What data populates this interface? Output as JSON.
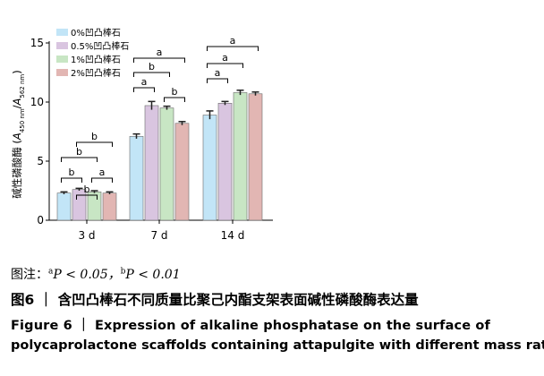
{
  "chart_data": {
    "type": "bar",
    "categories": [
      "3 d",
      "7 d",
      "14 d"
    ],
    "series": [
      {
        "name": "0%凹凸棒石",
        "color": "#c2e5f7",
        "values": [
          2.3,
          7.1,
          8.9
        ],
        "errors": [
          0.1,
          0.2,
          0.35
        ]
      },
      {
        "name": "0.5%凹凸棒石",
        "color": "#d9c5e0",
        "values": [
          2.6,
          9.7,
          9.9
        ],
        "errors": [
          0.1,
          0.35,
          0.15
        ]
      },
      {
        "name": "1%凹凸棒石",
        "color": "#c8e6c4",
        "values": [
          2.4,
          9.5,
          10.8
        ],
        "errors": [
          0.1,
          0.15,
          0.2
        ]
      },
      {
        "name": "2%凹凸棒石",
        "color": "#e2b6b3",
        "values": [
          2.3,
          8.2,
          10.7
        ],
        "errors": [
          0.1,
          0.15,
          0.15
        ]
      }
    ],
    "ylabel_main": "碱性磷酸酶 (",
    "ylabel_A1": "A",
    "ylabel_sub1": "450 nm",
    "ylabel_slash": "/",
    "ylabel_A2": "A",
    "ylabel_sub2": "562 nm",
    "ylabel_close": ")",
    "ylim": [
      0,
      15
    ],
    "yticks": [
      0,
      5,
      10,
      15
    ],
    "legend_position": "top-left",
    "significance": [
      {
        "group": 0,
        "from": 0,
        "to": 1,
        "label": "b"
      },
      {
        "group": 0,
        "from": 1,
        "to": 2,
        "label": "b"
      },
      {
        "group": 0,
        "from": 0,
        "to": 2,
        "label": "b"
      },
      {
        "group": 0,
        "from": 1,
        "to": 3,
        "label": "b"
      },
      {
        "group": 0,
        "from": 2,
        "to": 3,
        "label": "a"
      },
      {
        "group": 1,
        "from": 0,
        "to": 1,
        "label": "a"
      },
      {
        "group": 1,
        "from": 0,
        "to": 2,
        "label": "b"
      },
      {
        "group": 1,
        "from": 0,
        "to": 3,
        "label": "a"
      },
      {
        "group": 1,
        "from": 2,
        "to": 3,
        "label": "b"
      },
      {
        "group": 2,
        "from": 0,
        "to": 1,
        "label": "a"
      },
      {
        "group": 2,
        "from": 0,
        "to": 2,
        "label": "a"
      },
      {
        "group": 2,
        "from": 0,
        "to": 3,
        "label": "a"
      }
    ]
  },
  "note": {
    "prefix": "图注：",
    "sup_a": "a",
    "p_a": "P < 0.05，",
    "sup_b": "b",
    "p_b": "P < 0.01"
  },
  "caption_cn": "图6 ｜ 含凹凸棒石不同质量比聚己内酯支架表面碱性磷酸酶表达量",
  "caption_en_line1": "Figure 6 ｜ Expression of alkaline phosphatase on the surface of",
  "caption_en_line2": "polycaprolactone scaffolds containing attapulgite with different mass ratios"
}
